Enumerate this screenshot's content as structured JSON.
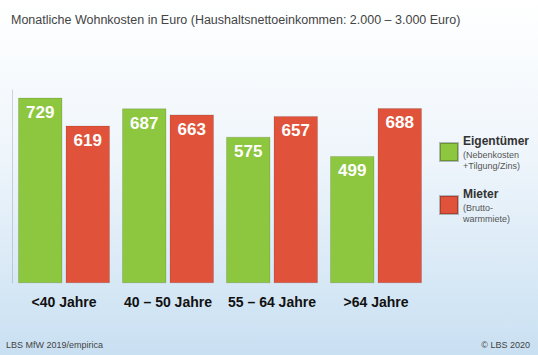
{
  "chart_data": {
    "type": "bar",
    "title": "Monatliche Wohnkosten in Euro (Haushaltsnettoeinkommen: 2.000 – 3.000 Euro)",
    "categories": [
      "<40 Jahre",
      "40 – 50 Jahre",
      "55 – 64 Jahre",
      ">64 Jahre"
    ],
    "series": [
      {
        "name": "Eigentümer",
        "note": "(Nebenkosten\n+Tilgung/Zins)",
        "color": "#8dc63f",
        "values": [
          729,
          687,
          575,
          499
        ]
      },
      {
        "name": "Mieter",
        "note": "(Brutto-\nwarmmiete)",
        "color": "#e0533a",
        "values": [
          619,
          663,
          657,
          688
        ]
      }
    ],
    "ylim": [
      0,
      760
    ],
    "data_labels": true,
    "tick_labels": "x",
    "grid": false,
    "legend": "right",
    "source": "LBS MfW 2019/empirica",
    "copyright": "© LBS 2020"
  }
}
